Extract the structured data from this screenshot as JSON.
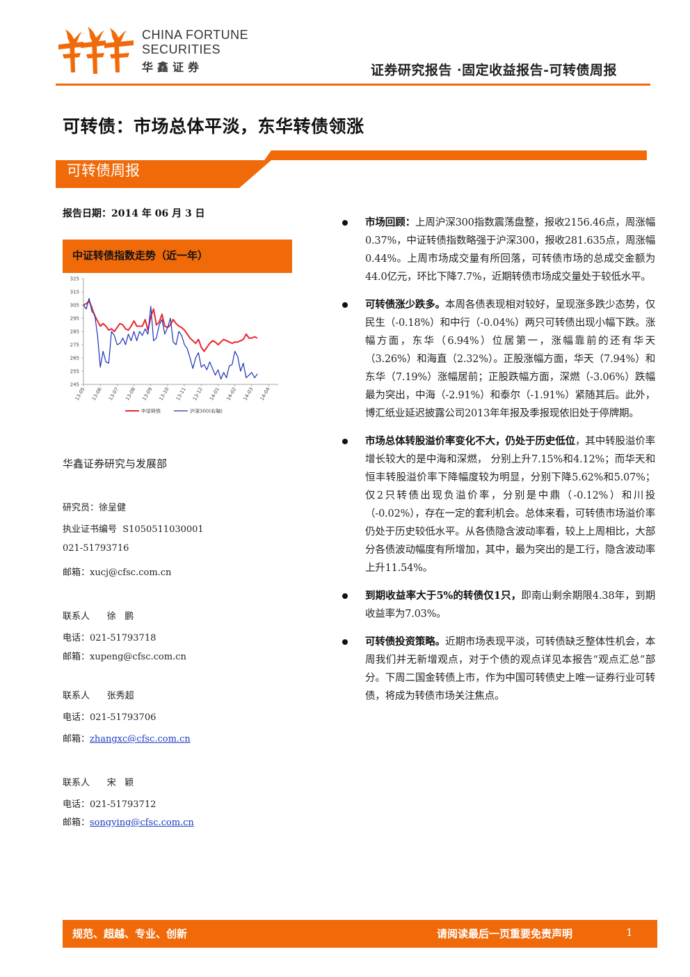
{
  "brand": {
    "name_en_line1": "CHINA FORTUNE",
    "name_en_line2": "SECURITIES",
    "name_cn": "华鑫证券",
    "logo_icon": "flame-figures-icon",
    "accent_color": "#f06a0a"
  },
  "header": {
    "title": "证券研究报告 ·固定收益报告-可转债周报"
  },
  "main_title": "可转债：市场总体平淡，东华转债领涨",
  "section_band": "可转债周报",
  "report_date": "报告日期：2014 年 06 月 3 日",
  "chart_header": "中证转债指数走势（近一年）",
  "chart_data": {
    "type": "line",
    "title": "中证转债指数走势（近一年）",
    "ylim": [
      245,
      325
    ],
    "yticks": [
      "325",
      "315",
      "305",
      "295",
      "285",
      "275",
      "265",
      "255",
      "245"
    ],
    "xticks": [
      "13-05",
      "13-06",
      "13-07",
      "13-08",
      "13-09",
      "13-10",
      "13-11",
      "13-12",
      "14-01",
      "14-02",
      "14-03",
      "14-04"
    ],
    "legend": [
      "中证转债",
      "沪深300(右轴)"
    ],
    "series": [
      {
        "name": "中证转债",
        "color": "#e8262b",
        "values": [
          305,
          306,
          308,
          303,
          297,
          293,
          289,
          291,
          289,
          286,
          287,
          285,
          288,
          291,
          290,
          287,
          286,
          289,
          293,
          289,
          289,
          289,
          294,
          286,
          296,
          302,
          290,
          292,
          298,
          289,
          288,
          290,
          294,
          291,
          289,
          288,
          286,
          283,
          280,
          278,
          276,
          279,
          273,
          270,
          273,
          276,
          278,
          277,
          275,
          277,
          279,
          278,
          277,
          276,
          277,
          277,
          278,
          279,
          283,
          280,
          280,
          281,
          280
        ]
      },
      {
        "name": "沪深300(右轴)",
        "color": "#1c2fb8",
        "values": [
          305,
          302,
          310,
          300,
          298,
          282,
          258,
          270,
          262,
          261,
          285,
          282,
          275,
          276,
          280,
          275,
          283,
          278,
          285,
          278,
          285,
          282,
          287,
          283,
          304,
          278,
          280,
          290,
          294,
          283,
          288,
          295,
          277,
          275,
          285,
          282,
          275,
          272,
          265,
          257,
          265,
          269,
          258,
          260,
          256,
          262,
          257,
          252,
          256,
          249,
          254,
          250,
          259,
          260,
          270,
          266,
          255,
          261,
          250,
          252,
          254,
          250,
          253
        ]
      }
    ]
  },
  "department": "华鑫证券研究与发展部",
  "contacts": [
    {
      "text": "研究员：徐呈健",
      "link": ""
    },
    {
      "text": "执业证书编号  S1050511030001",
      "link": ""
    },
    {
      "text": "021-51793716",
      "link": ""
    },
    {
      "text": "邮箱：",
      "link": "xucj@cfsc.com.cn",
      "underline": false
    },
    {
      "text": "联系人      徐   鹏",
      "link": ""
    },
    {
      "text": "电话：021-51793718",
      "link": ""
    },
    {
      "text": "邮箱：",
      "link": "xupeng@cfsc.com.cn",
      "underline": false
    },
    {
      "text": "联系人      张秀超",
      "link": ""
    },
    {
      "text": "电话：021-51793706",
      "link": ""
    },
    {
      "text": "邮箱：",
      "link": "zhangxc@cfsc.com.cn",
      "underline": true
    },
    {
      "text": "联系人      宋   颖",
      "link": ""
    },
    {
      "text": "电话：021-51793712",
      "link": ""
    },
    {
      "text": "邮箱：",
      "link": "songying@cfsc.com.cn",
      "underline": true
    }
  ],
  "bullets": [
    {
      "lead": "市场回顾：",
      "body": "上周沪深300指数震荡盘整，报收2156.46点，周涨幅0.37%，中证转债指数略强于沪深300，报收281.635点，周涨幅0.44%。上周市场成交量有所回落，可转债市场的总成交金额为44.0亿元，环比下降7.7%，近期转债市场成交量处于较低水平。"
    },
    {
      "lead": "可转债涨少跌多。",
      "body": "本周各债表现相对较好，呈现涨多跌少态势，仅民生（-0.18%）和中行（-0.04%）两只可转债出现小幅下跌。涨幅方面，东华（6.94%）位居第一，涨幅靠前的还有华天（3.26%）和海直（2.32%）。正股涨幅方面，华天（7.94%）和东华（7.19%）涨幅居前；正股跌幅方面，深燃（-3.06%）跌幅最为突出，中海（-2.91%）和泰尔（-1.91%）紧随其后。此外，博汇纸业延迟披露公司2013年年报及季报现依旧处于停牌期。"
    },
    {
      "lead": "市场总体转股溢价率变化不大，仍处于历史低位",
      "body": "，其中转股溢价率增长较大的是中海和深燃， 分别上升7.15%和4.12%；而华天和恒丰转股溢价率下降幅度较为明显，分别下降5.62%和5.07%；仅2只转债出现负溢价率，分别是中鼎（-0.12%）和川投（-0.02%），存在一定的套利机会。总体来看，可转债市场溢价率仍处于历史较低水平。从各债隐含波动率看，较上上周相比，大部分各债波动幅度有所增加，其中，最为突出的是工行，隐含波动率上升11.54%。"
    },
    {
      "lead": "到期收益率大于5%的转债仅1只，",
      "body": "即南山剩余期限4.38年，到期收益率为7.03%。"
    },
    {
      "lead": "可转债投资策略。",
      "body": "近期市场表现平淡，可转债缺乏整体性机会，本周我们并无新增观点，对于个债的观点详见本报告“观点汇总”部分。下周二国金转债上市，作为中国可转债史上唯一证券行业可转债，将成为转债市场关注焦点。"
    }
  ],
  "footer": {
    "left": "规范、超越、专业、创新",
    "right": "请阅读最后一页重要免责声明",
    "page": "1"
  }
}
